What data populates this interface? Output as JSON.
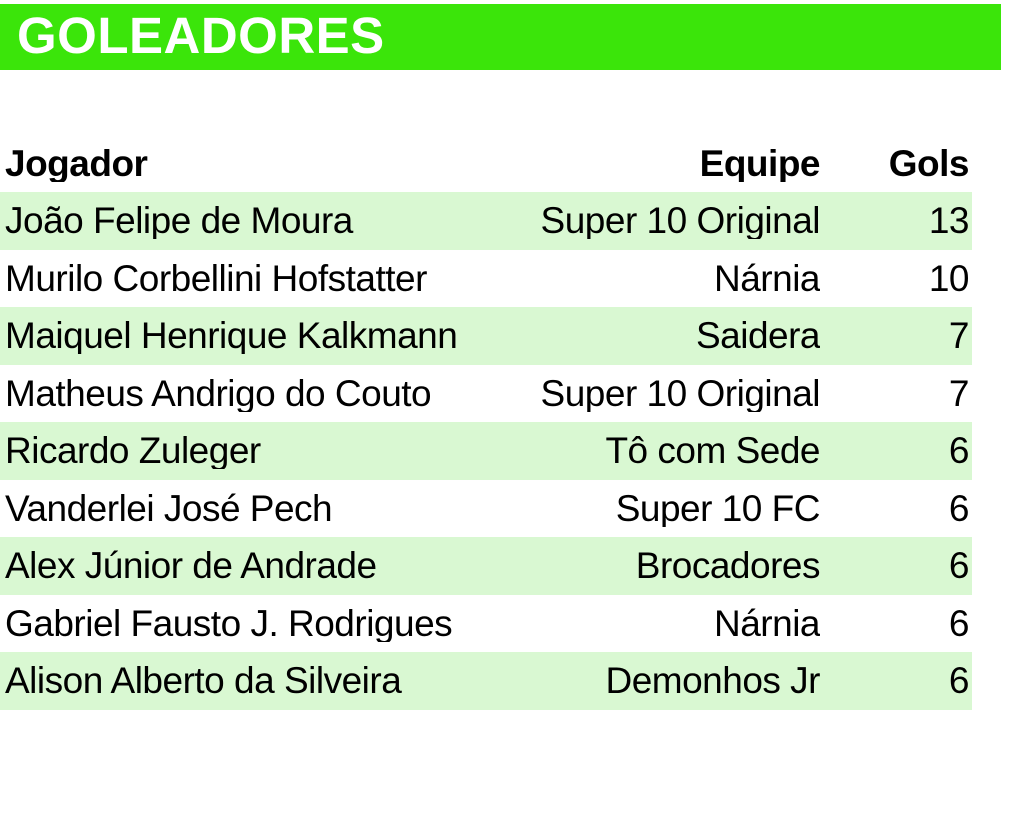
{
  "title_bar": {
    "label": "GOLEADORES"
  },
  "colors": {
    "header_green": "#3be50a",
    "row_green": "#d9f8d2",
    "title_text": "#ffffff",
    "body_text": "#000000"
  },
  "table": {
    "headers": {
      "player": "Jogador",
      "team": "Equipe",
      "goals": "Gols"
    },
    "rows": [
      {
        "player": "João Felipe de Moura",
        "team": "Super 10 Original",
        "goals": "13"
      },
      {
        "player": "Murilo Corbellini Hofstatter",
        "team": "Nárnia",
        "goals": "10"
      },
      {
        "player": "Maiquel Henrique Kalkmann",
        "team": "Saidera",
        "goals": "7"
      },
      {
        "player": "Matheus Andrigo do Couto",
        "team": "Super 10 Original",
        "goals": "7"
      },
      {
        "player": "Ricardo Zuleger",
        "team": "Tô com Sede",
        "goals": "6"
      },
      {
        "player": "Vanderlei José Pech",
        "team": "Super 10 FC",
        "goals": "6"
      },
      {
        "player": "Alex Júnior de Andrade",
        "team": "Brocadores",
        "goals": "6"
      },
      {
        "player": "Gabriel Fausto J. Rodrigues",
        "team": "Nárnia",
        "goals": "6"
      },
      {
        "player": "Alison Alberto da Silveira",
        "team": "Demonhos Jr",
        "goals": "6"
      }
    ]
  }
}
